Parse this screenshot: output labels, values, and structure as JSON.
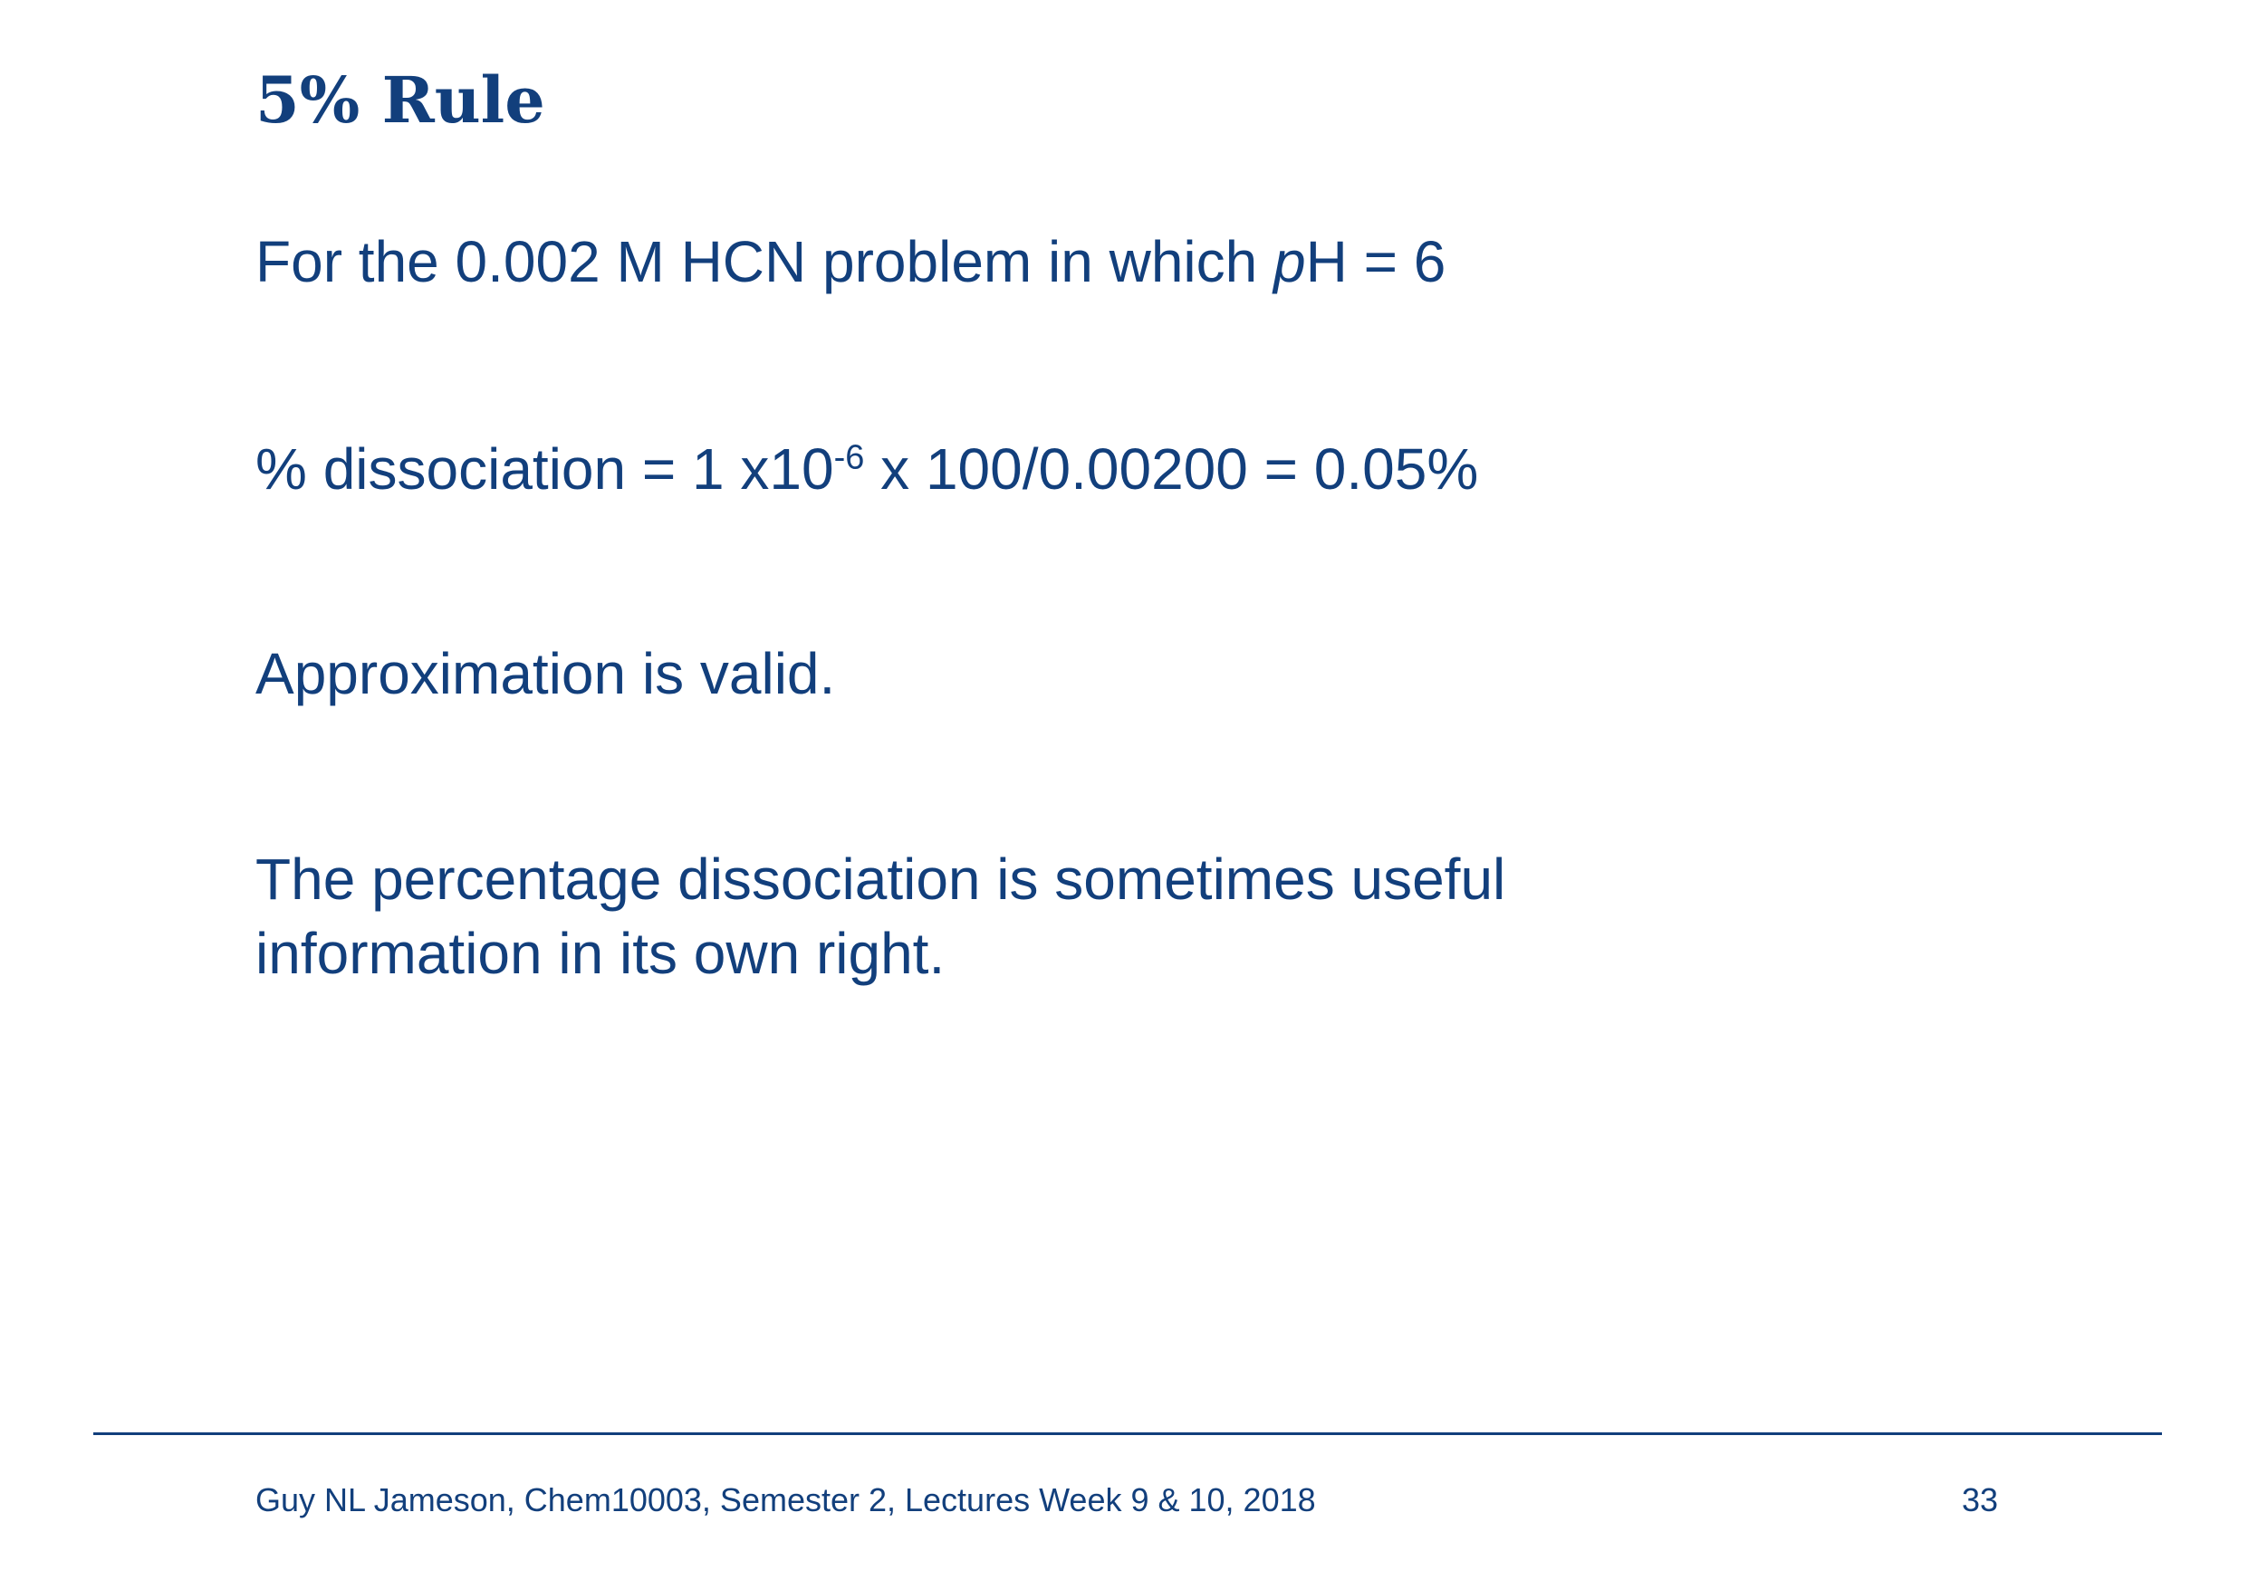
{
  "slide": {
    "title": "5% Rule",
    "line1": {
      "before_p": "For the 0.002 M HCN problem in which ",
      "p_italic": "p",
      "after_p": "H = 6"
    },
    "line2": {
      "before_sup": "% dissociation = 1 x10",
      "superscript": "-6",
      "after_sup": " x 100/0.00200 = 0.05%"
    },
    "line3": "Approximation is valid.",
    "line4": "The percentage dissociation is sometimes useful information in its own right."
  },
  "footer": {
    "text": "Guy NL Jameson, Chem10003, Semester 2, Lectures Week 9 & 10, 2018",
    "page_number": "33"
  }
}
